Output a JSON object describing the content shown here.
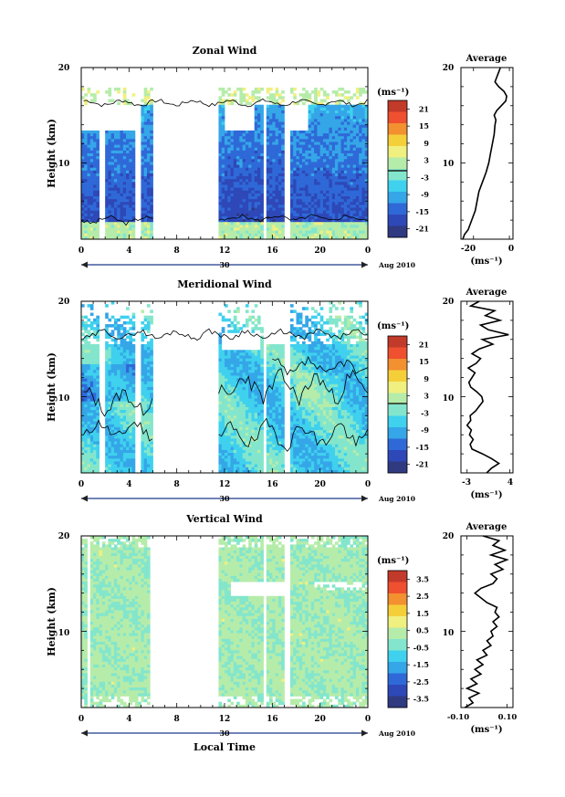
{
  "chart_data": [
    {
      "type": "heatmap",
      "title": "Zonal Wind",
      "ylabel": "Height (km)",
      "xlabel": "",
      "xlim": [
        0,
        24
      ],
      "ylim": [
        2,
        20
      ],
      "x_ticks": [
        "0",
        "4",
        "8",
        "12",
        "16",
        "20",
        "0"
      ],
      "x_tick_values": [
        0,
        4,
        8,
        12,
        16,
        20,
        24
      ],
      "y_ticks": [
        "20",
        "10"
      ],
      "y_tick_values": [
        20,
        10
      ],
      "date_label": "30",
      "date_suffix": "Aug 2010",
      "colorbar": {
        "unit": "(ms⁻¹)",
        "ticks": [
          "21",
          "15",
          "9",
          "3",
          "-3",
          "-9",
          "-15",
          "-21"
        ],
        "range": [
          -24,
          24
        ]
      },
      "average_panel": {
        "title": "Average",
        "unit": "(ms⁻¹)",
        "x_ticks": [
          "-20",
          "0"
        ],
        "x_tick_values": [
          -20,
          0
        ],
        "xlim": [
          -27,
          2
        ],
        "y_ticks": [
          "20",
          "10"
        ]
      }
    },
    {
      "type": "heatmap",
      "title": "Meridional Wind",
      "ylabel": "Height (km)",
      "xlabel": "",
      "xlim": [
        0,
        24
      ],
      "ylim": [
        2,
        20
      ],
      "x_ticks": [
        "0",
        "4",
        "8",
        "12",
        "16",
        "20",
        "0"
      ],
      "x_tick_values": [
        0,
        4,
        8,
        12,
        16,
        20,
        24
      ],
      "y_ticks": [
        "20",
        "10"
      ],
      "y_tick_values": [
        20,
        10
      ],
      "date_label": "30",
      "date_suffix": "Aug 2010",
      "colorbar": {
        "unit": "(ms⁻¹)",
        "ticks": [
          "21",
          "15",
          "9",
          "3",
          "-3",
          "-9",
          "-15",
          "-21"
        ],
        "range": [
          -24,
          24
        ]
      },
      "average_panel": {
        "title": "Average",
        "unit": "(ms⁻¹)",
        "x_ticks": [
          "-3",
          "4"
        ],
        "x_tick_values": [
          -3,
          4
        ],
        "xlim": [
          -4,
          4.5
        ],
        "y_ticks": [
          "20",
          "10"
        ]
      }
    },
    {
      "type": "heatmap",
      "title": "Vertical Wind",
      "ylabel": "Height (km)",
      "xlabel": "Local Time",
      "xlim": [
        0,
        24
      ],
      "ylim": [
        2,
        20
      ],
      "x_ticks": [
        "0",
        "4",
        "8",
        "12",
        "16",
        "20",
        "0"
      ],
      "x_tick_values": [
        0,
        4,
        8,
        12,
        16,
        20,
        24
      ],
      "y_ticks": [
        "20",
        "10"
      ],
      "y_tick_values": [
        20,
        10
      ],
      "date_label": "30",
      "date_suffix": "Aug 2010",
      "colorbar": {
        "unit": "(ms⁻¹)",
        "ticks": [
          "3.5",
          "2.5",
          "1.5",
          "0.5",
          "-0.5",
          "-1.5",
          "-2.5",
          "-3.5"
        ],
        "range": [
          -4,
          4
        ]
      },
      "average_panel": {
        "title": "Average",
        "unit": "(ms⁻¹)",
        "x_ticks": [
          "-0.10",
          "0.10"
        ],
        "x_tick_values": [
          -0.1,
          0.1
        ],
        "xlim": [
          -0.13,
          0.13
        ],
        "y_ticks": [
          "20",
          "10"
        ]
      }
    }
  ],
  "profiles": [
    [
      [
        -26,
        2
      ],
      [
        -25,
        2.5
      ],
      [
        -23,
        3
      ],
      [
        -21,
        4
      ],
      [
        -19,
        5
      ],
      [
        -18,
        6
      ],
      [
        -17,
        7
      ],
      [
        -15,
        8
      ],
      [
        -13,
        9
      ],
      [
        -11.5,
        10
      ],
      [
        -10.5,
        11
      ],
      [
        -9.5,
        12
      ],
      [
        -8.5,
        13
      ],
      [
        -8,
        14
      ],
      [
        -7.5,
        14.5
      ],
      [
        -8.5,
        15
      ],
      [
        -7,
        15.5
      ],
      [
        -4.5,
        16
      ],
      [
        -2,
        16.5
      ],
      [
        -1.5,
        17
      ],
      [
        -3,
        17.5
      ],
      [
        -6,
        18
      ],
      [
        -8,
        18.5
      ],
      [
        -7,
        19
      ],
      [
        -6,
        19.5
      ],
      [
        -5,
        20
      ]
    ],
    [
      [
        0.2,
        2
      ],
      [
        1.0,
        2.5
      ],
      [
        2.2,
        3
      ],
      [
        1.0,
        3.5
      ],
      [
        -0.5,
        4
      ],
      [
        -2.2,
        4.5
      ],
      [
        -2.5,
        5
      ],
      [
        -2.0,
        5.5
      ],
      [
        -2.6,
        6
      ],
      [
        -2.3,
        6.5
      ],
      [
        -3.0,
        7
      ],
      [
        -2.4,
        7.5
      ],
      [
        -2.5,
        8
      ],
      [
        -1.6,
        8.5
      ],
      [
        -1.0,
        9
      ],
      [
        -0.4,
        9.5
      ],
      [
        -0.6,
        10
      ],
      [
        -1.4,
        10.5
      ],
      [
        -2.4,
        11
      ],
      [
        -2.7,
        11.5
      ],
      [
        -2.2,
        12
      ],
      [
        -1.7,
        12.5
      ],
      [
        -2.8,
        13
      ],
      [
        -1.5,
        13.5
      ],
      [
        -0.8,
        14
      ],
      [
        -2.2,
        14.5
      ],
      [
        -1.0,
        15
      ],
      [
        1.2,
        15.5
      ],
      [
        -0.5,
        16
      ],
      [
        3.8,
        16.5
      ],
      [
        0.5,
        17
      ],
      [
        -0.8,
        17.5
      ],
      [
        2.4,
        18
      ],
      [
        0.0,
        18.5
      ],
      [
        1.5,
        19
      ],
      [
        -2.4,
        19.5
      ],
      [
        -1.0,
        20
      ]
    ],
    [
      [
        -0.11,
        2
      ],
      [
        -0.07,
        2.5
      ],
      [
        -0.09,
        3
      ],
      [
        -0.04,
        3.5
      ],
      [
        -0.1,
        4
      ],
      [
        -0.05,
        4.5
      ],
      [
        -0.08,
        5
      ],
      [
        -0.03,
        5.5
      ],
      [
        -0.06,
        6
      ],
      [
        -0.02,
        6.5
      ],
      [
        -0.05,
        7
      ],
      [
        0.0,
        7.5
      ],
      [
        -0.02,
        8
      ],
      [
        0.02,
        8.5
      ],
      [
        0.0,
        9
      ],
      [
        0.03,
        9.5
      ],
      [
        0.02,
        10
      ],
      [
        0.05,
        10.5
      ],
      [
        0.03,
        11
      ],
      [
        0.06,
        11.5
      ],
      [
        0.04,
        12
      ],
      [
        0.05,
        12.5
      ],
      [
        0.0,
        13
      ],
      [
        -0.03,
        13.5
      ],
      [
        -0.06,
        14
      ],
      [
        -0.03,
        14.5
      ],
      [
        0.03,
        15
      ],
      [
        0.05,
        15.5
      ],
      [
        0.02,
        16
      ],
      [
        0.08,
        16.5
      ],
      [
        0.04,
        17
      ],
      [
        0.1,
        17.5
      ],
      [
        0.02,
        18
      ],
      [
        0.09,
        18.5
      ],
      [
        0.03,
        19
      ],
      [
        0.06,
        19.5
      ],
      [
        -0.02,
        20
      ]
    ]
  ],
  "colors": {
    "scale": [
      "#303a80",
      "#2e48b8",
      "#2f69d8",
      "#35a6e8",
      "#3fd1ee",
      "#83e6cc",
      "#b6ecaa",
      "#f0f080",
      "#f5cf3a",
      "#f39030",
      "#ee5030",
      "#c23a2a"
    ]
  }
}
